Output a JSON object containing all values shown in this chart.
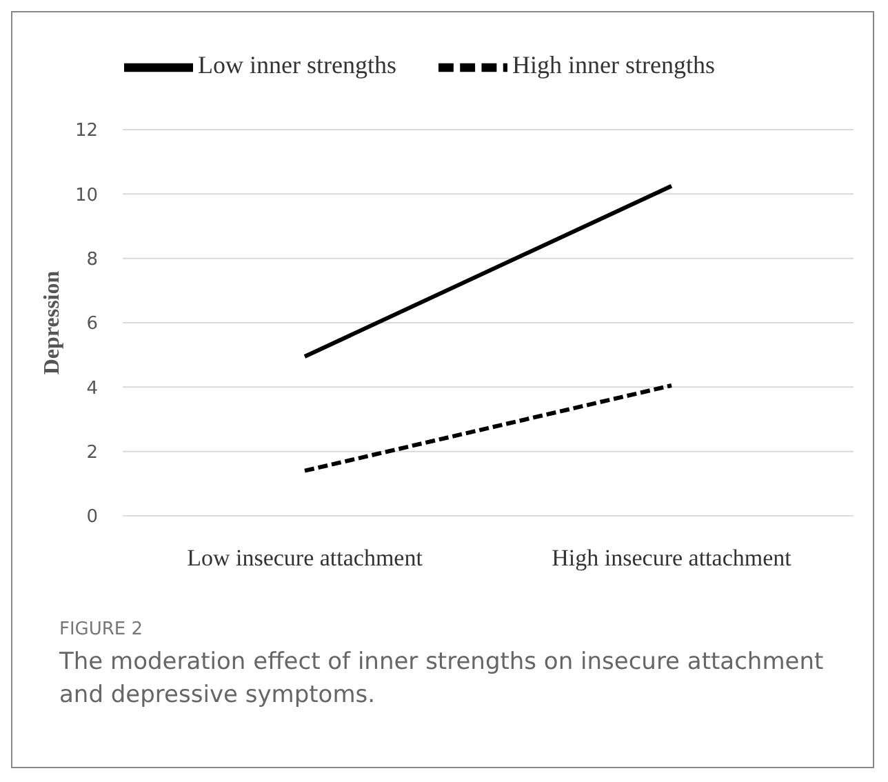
{
  "chart_data": {
    "type": "line",
    "ylabel": "Depression",
    "categories": [
      "Low insecure attachment",
      "High insecure attachment"
    ],
    "series": [
      {
        "name": "Low inner strengths",
        "color": "#000000",
        "values": [
          4.95,
          10.25
        ],
        "line_style": "solid"
      },
      {
        "name": "High inner strengths",
        "color": "#000000",
        "values": [
          1.4,
          4.05
        ],
        "line_style": "dashed"
      }
    ],
    "ylim": [
      0,
      12
    ],
    "yticks": [
      0,
      2,
      4,
      6,
      8,
      10,
      12
    ],
    "grid": "y",
    "legend": "top",
    "marker": "none",
    "annotations": [
      "FIGURE 2",
      "The moderation effect of inner strengths on insecure attachment and depressive symptoms."
    ]
  }
}
